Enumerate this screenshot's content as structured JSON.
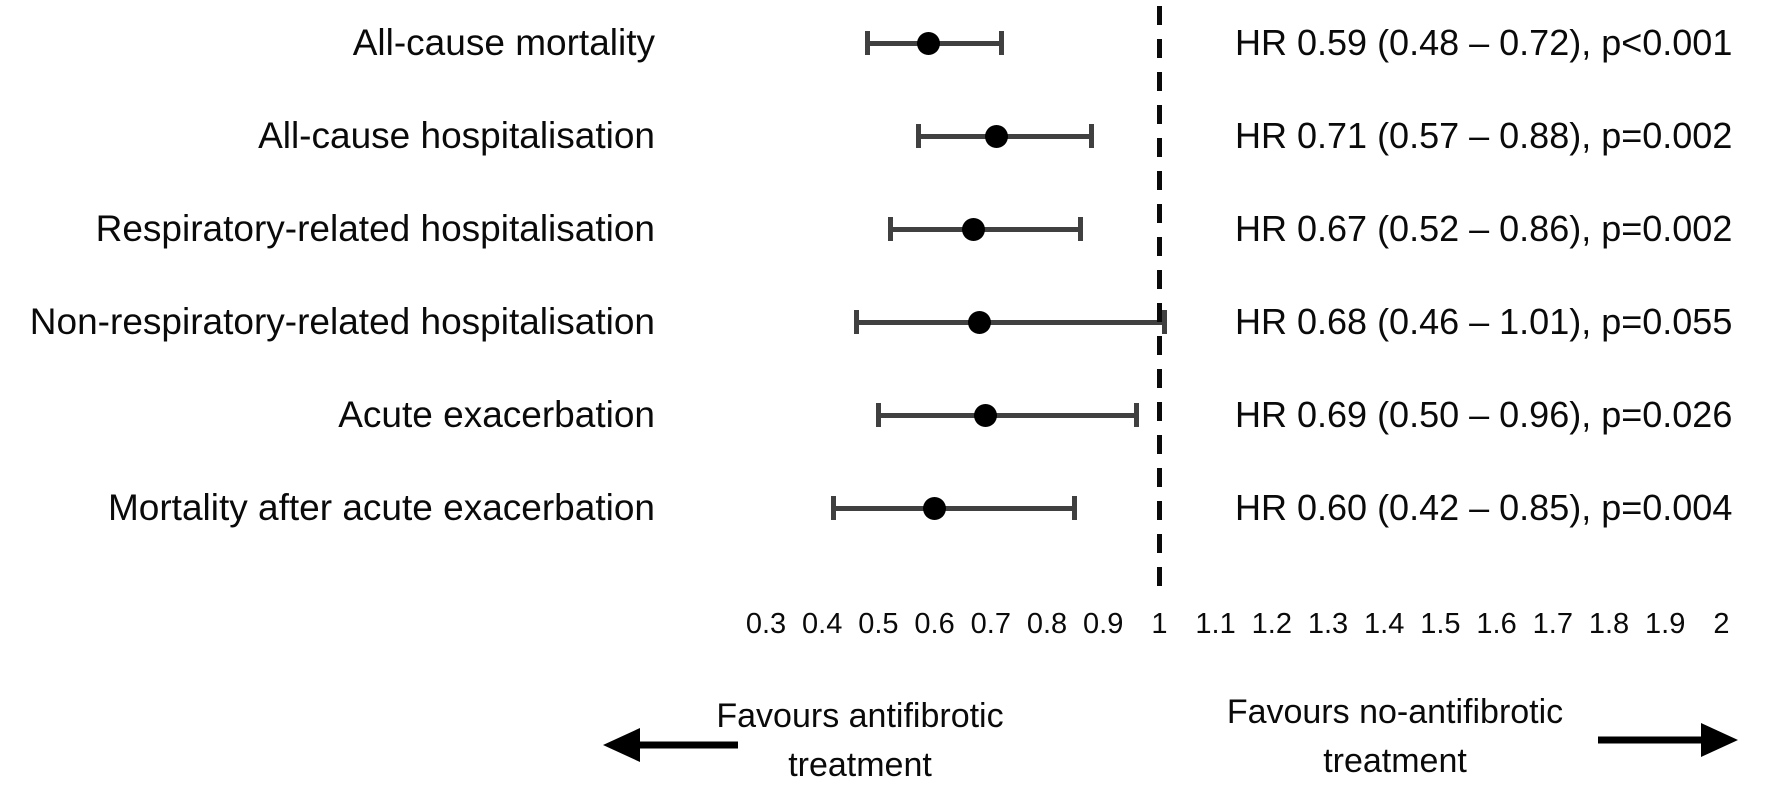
{
  "chart_data": {
    "type": "scatter",
    "subtype": "forest-plot",
    "effect_measure": "HR",
    "rows": [
      {
        "label": "All-cause mortality",
        "hr": 0.59,
        "ci_low": 0.48,
        "ci_high": 0.72,
        "annotation": "HR 0.59 (0.48 – 0.72), p<0.001"
      },
      {
        "label": "All-cause hospitalisation",
        "hr": 0.71,
        "ci_low": 0.57,
        "ci_high": 0.88,
        "annotation": "HR 0.71 (0.57 – 0.88), p=0.002"
      },
      {
        "label": "Respiratory-related hospitalisation",
        "hr": 0.67,
        "ci_low": 0.52,
        "ci_high": 0.86,
        "annotation": "HR 0.67 (0.52 – 0.86), p=0.002"
      },
      {
        "label": "Non-respiratory-related hospitalisation",
        "hr": 0.68,
        "ci_low": 0.46,
        "ci_high": 1.01,
        "annotation": "HR 0.68 (0.46 – 1.01), p=0.055"
      },
      {
        "label": "Acute exacerbation",
        "hr": 0.69,
        "ci_low": 0.5,
        "ci_high": 0.96,
        "annotation": "HR 0.69 (0.50 – 0.96), p=0.026"
      },
      {
        "label": "Mortality after acute exacerbation",
        "hr": 0.6,
        "ci_low": 0.42,
        "ci_high": 0.85,
        "annotation": "HR 0.60 (0.42 – 0.85), p=0.004"
      }
    ],
    "x_axis": {
      "tick_labels": [
        "0.3",
        "0.4",
        "0.5",
        "0.6",
        "0.7",
        "0.8",
        "0.9",
        "1",
        "1.1",
        "1.2",
        "1.3",
        "1.4",
        "1.5",
        "1.6",
        "1.7",
        "1.8",
        "1.9",
        "2"
      ],
      "tick_values": [
        0.3,
        0.4,
        0.5,
        0.6,
        0.7,
        0.8,
        0.9,
        1.0,
        1.1,
        1.2,
        1.3,
        1.4,
        1.5,
        1.6,
        1.7,
        1.8,
        1.9,
        2.0
      ],
      "xlim": [
        0.3,
        2.0
      ],
      "reference_line": 1.0,
      "grid": "off"
    },
    "legend_position": "none",
    "footer": {
      "left_line1": "Favours antifibrotic",
      "left_line2": "treatment",
      "left_arrow_icon": "arrow-left-icon",
      "right_line1": "Favours no-antifibrotic",
      "right_line2": "treatment",
      "right_arrow_icon": "arrow-right-icon"
    },
    "colors": {
      "text": "#0a0a0a",
      "error_bar": "#404040",
      "point": "#000000",
      "reference_line": "#0a0a0a"
    }
  }
}
